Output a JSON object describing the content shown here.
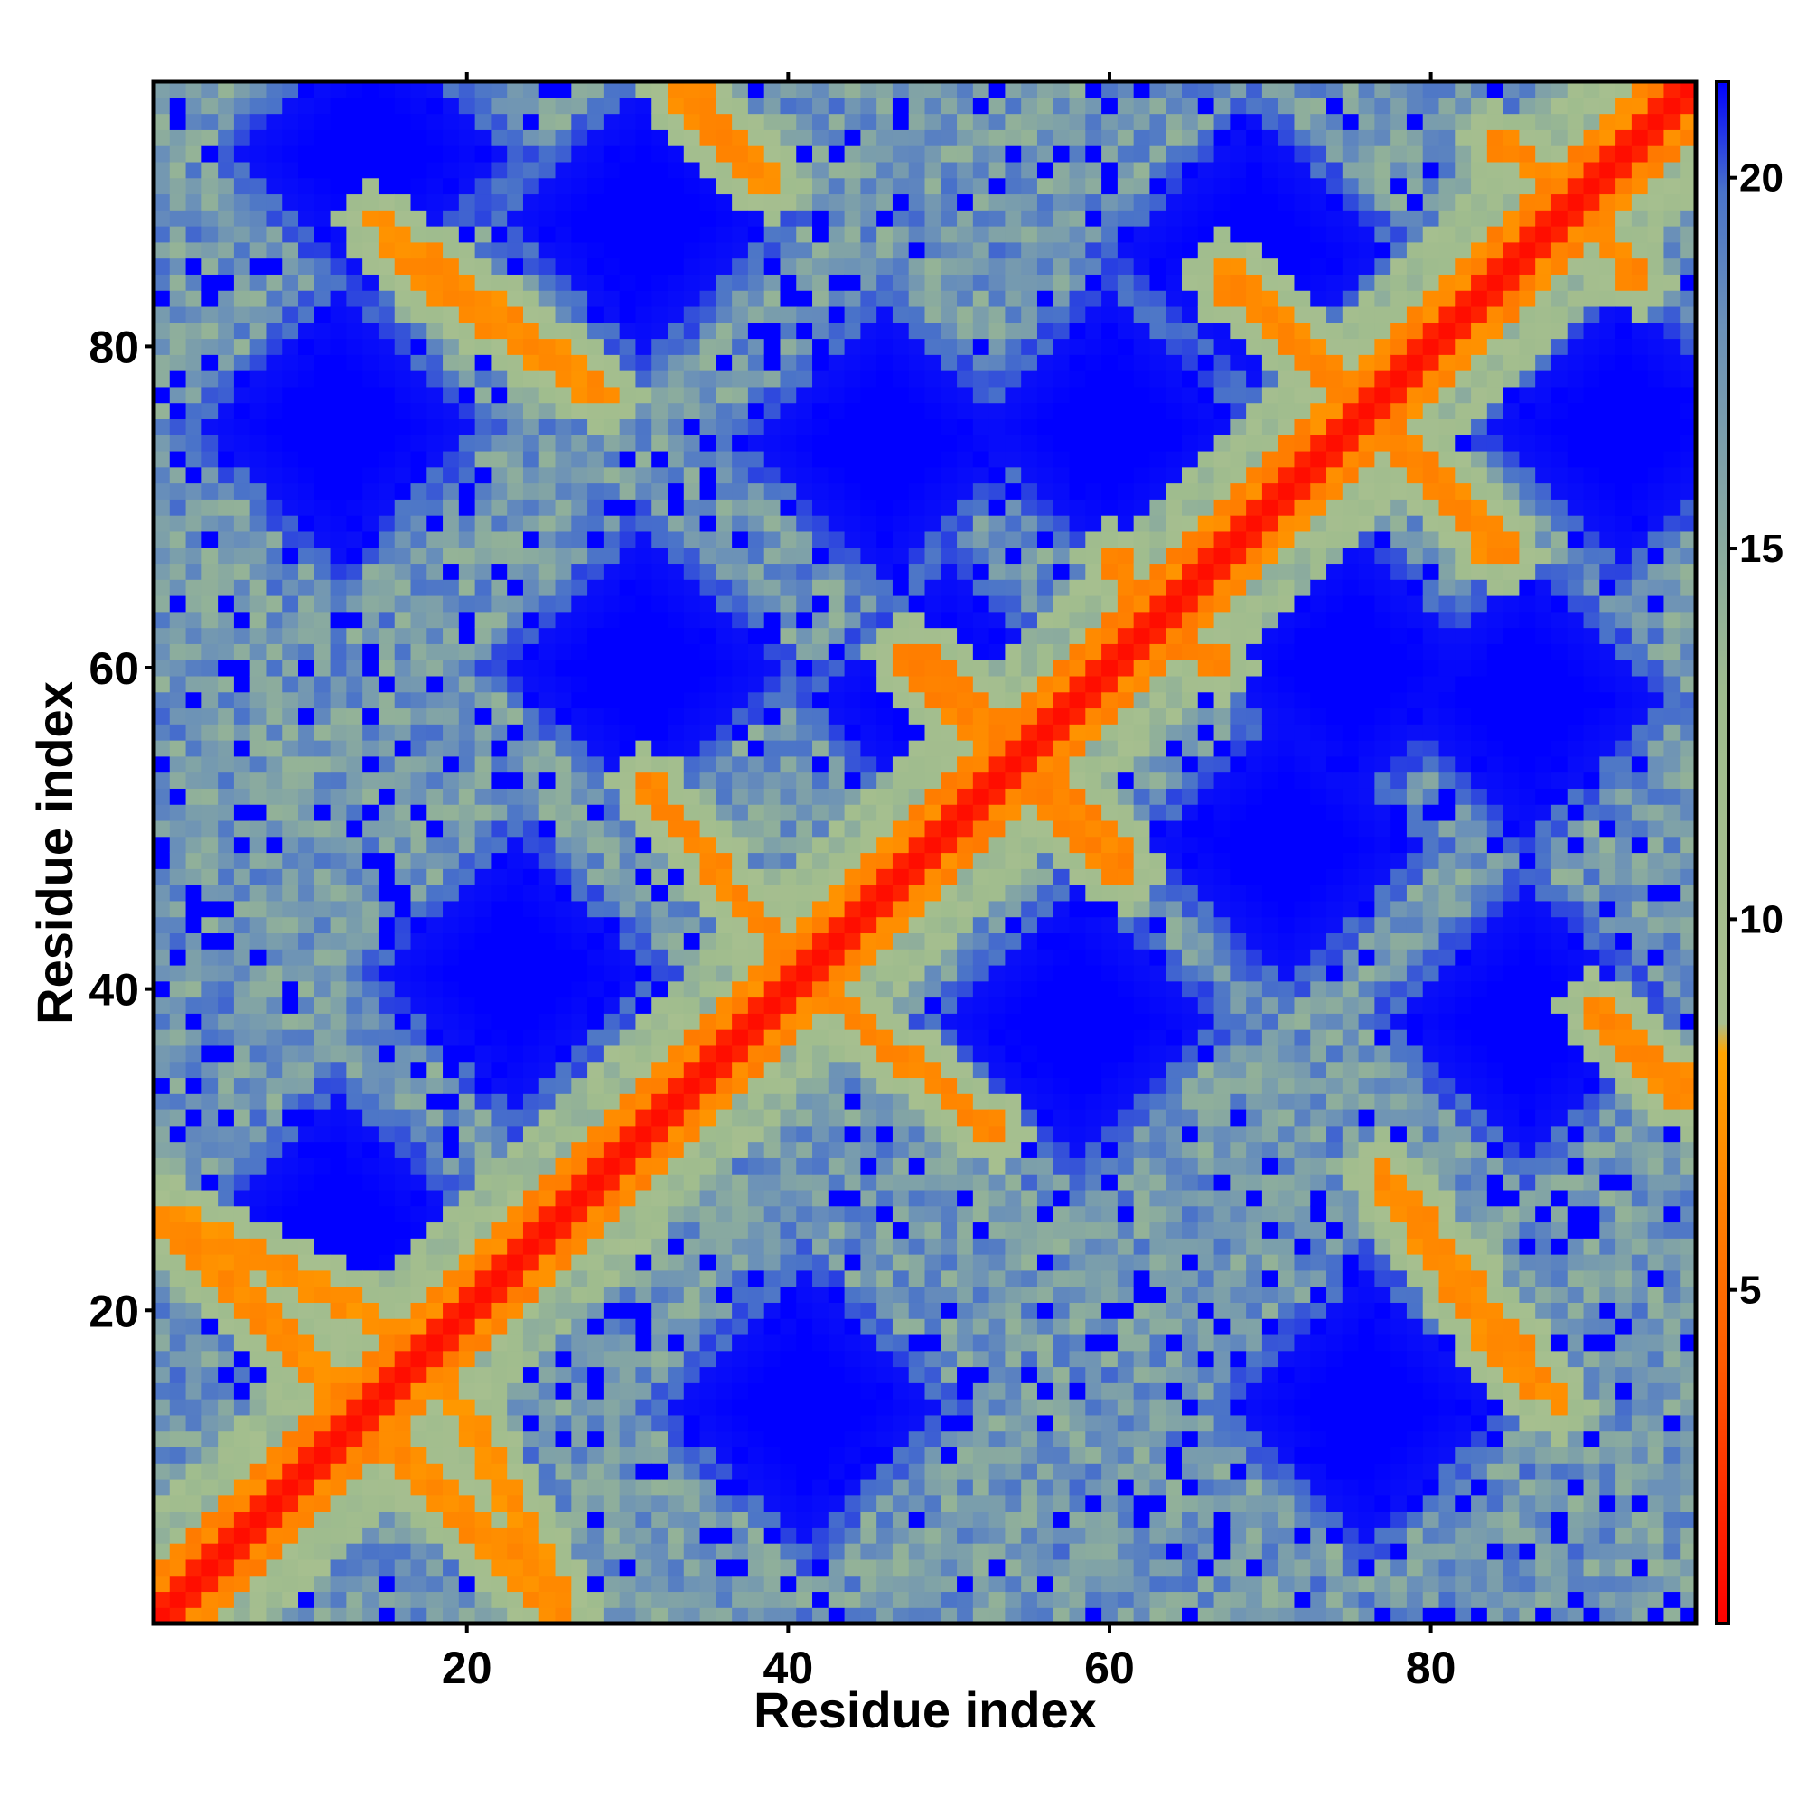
{
  "chart_data": {
    "type": "heatmap",
    "title": "",
    "xlabel": "Residue index",
    "ylabel": "Residue index",
    "n_residues": 96,
    "x_ticks": [
      20,
      40,
      60,
      80
    ],
    "y_ticks": [
      20,
      40,
      60,
      80
    ],
    "xlim": [
      1,
      96
    ],
    "ylim": [
      1,
      96
    ],
    "colorbar": {
      "ticks": [
        5,
        10,
        15,
        20
      ],
      "range": [
        0.5,
        21.3
      ],
      "stops": [
        {
          "value": 0.5,
          "color": "#ff0000"
        },
        {
          "value": 4.0,
          "color": "#ff5a00"
        },
        {
          "value": 8.2,
          "color": "#ffa500"
        },
        {
          "value": 8.6,
          "color": "#a9c08f"
        },
        {
          "value": 13.0,
          "color": "#9fbc8e"
        },
        {
          "value": 18.0,
          "color": "#6b91b8"
        },
        {
          "value": 19.8,
          "color": "#4a73c9"
        },
        {
          "value": 21.3,
          "color": "#0000ff"
        }
      ]
    },
    "pattern": {
      "description_free": true,
      "diagonal_value": 1.0,
      "near_diagonal_value": 6.5,
      "far_value": 21.5,
      "period": 20,
      "contact_bands": [
        {
          "from": [
            2,
            26
          ],
          "to": [
            17,
            18
          ],
          "value": 7.0
        },
        {
          "from": [
            11,
            16
          ],
          "to": [
            26,
            1
          ],
          "value": 6.8
        },
        {
          "from": [
            15,
            86
          ],
          "to": [
            28,
            77
          ],
          "value": 6.8
        },
        {
          "from": [
            33,
            96
          ],
          "to": [
            38,
            91
          ],
          "value": 6.6
        },
        {
          "from": [
            31,
            53
          ],
          "to": [
            40,
            42
          ],
          "value": 6.6
        },
        {
          "from": [
            42,
            40
          ],
          "to": [
            53,
            31
          ],
          "value": 6.6
        },
        {
          "from": [
            48,
            61
          ],
          "to": [
            55,
            54
          ],
          "value": 6.4
        },
        {
          "from": [
            53,
            54
          ],
          "to": [
            61,
            47
          ],
          "value": 6.4
        },
        {
          "from": [
            67,
            85
          ],
          "to": [
            76,
            76
          ],
          "value": 6.6
        },
        {
          "from": [
            76,
            76
          ],
          "to": [
            84,
            67
          ],
          "value": 6.6
        },
        {
          "from": [
            61,
            65
          ],
          "to": [
            67,
            60
          ],
          "value": 6.4
        },
        {
          "from": [
            77,
            29
          ],
          "to": [
            88,
            14
          ],
          "value": 6.8
        },
        {
          "from": [
            90,
            39
          ],
          "to": [
            96,
            34
          ],
          "value": 6.8
        },
        {
          "from": [
            84,
            93
          ],
          "to": [
            91,
            87
          ],
          "value": 6.6
        }
      ],
      "blocks": [
        [
          12,
          75
        ],
        [
          12,
          25
        ],
        [
          31,
          60
        ],
        [
          31,
          88
        ],
        [
          50,
          58
        ],
        [
          58,
          38
        ],
        [
          69,
          86
        ],
        [
          71,
          49
        ],
        [
          86,
          38
        ],
        [
          86,
          58
        ],
        [
          92,
          75
        ],
        [
          60,
          75
        ],
        [
          75,
          60
        ],
        [
          41,
          14
        ],
        [
          23,
          41
        ],
        [
          14,
          92
        ],
        [
          46,
          74
        ],
        [
          76,
          14
        ]
      ]
    }
  }
}
